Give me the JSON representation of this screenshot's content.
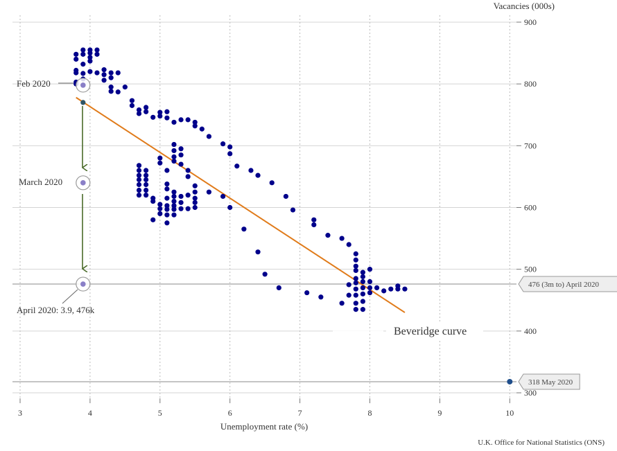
{
  "chart_data": {
    "type": "scatter",
    "title": "",
    "xlabel": "Unemployment rate (%)",
    "ylabel": "Vacancies (000s)",
    "xlim": [
      3,
      10
    ],
    "ylim": [
      300,
      900
    ],
    "xticks": [
      3,
      4,
      5,
      6,
      7,
      8,
      9,
      10
    ],
    "yticks": [
      300,
      400,
      500,
      600,
      700,
      800,
      900
    ],
    "source": "U.K. Office for National Statistics (ONS)",
    "curve_label": "Beveridge curve",
    "fit_line": {
      "x": [
        3.8,
        8.5
      ],
      "y": [
        778,
        430
      ]
    },
    "points": [
      [
        3.8,
        848
      ],
      [
        3.8,
        840
      ],
      [
        3.8,
        822
      ],
      [
        3.8,
        818
      ],
      [
        3.8,
        803
      ],
      [
        3.8,
        800
      ],
      [
        3.9,
        855
      ],
      [
        3.9,
        848
      ],
      [
        3.9,
        832
      ],
      [
        3.9,
        817
      ],
      [
        3.9,
        808
      ],
      [
        4.0,
        855
      ],
      [
        4.0,
        850
      ],
      [
        4.0,
        843
      ],
      [
        4.0,
        837
      ],
      [
        4.0,
        820
      ],
      [
        4.1,
        855
      ],
      [
        4.1,
        848
      ],
      [
        4.1,
        818
      ],
      [
        4.2,
        823
      ],
      [
        4.2,
        815
      ],
      [
        4.2,
        806
      ],
      [
        4.3,
        818
      ],
      [
        4.3,
        810
      ],
      [
        4.3,
        795
      ],
      [
        4.3,
        788
      ],
      [
        4.4,
        818
      ],
      [
        4.4,
        787
      ],
      [
        4.5,
        795
      ],
      [
        4.6,
        773
      ],
      [
        4.6,
        765
      ],
      [
        4.7,
        758
      ],
      [
        4.7,
        752
      ],
      [
        4.8,
        762
      ],
      [
        4.8,
        755
      ],
      [
        4.9,
        746
      ],
      [
        5.0,
        754
      ],
      [
        5.0,
        748
      ],
      [
        5.1,
        755
      ],
      [
        5.1,
        745
      ],
      [
        5.2,
        738
      ],
      [
        5.3,
        742
      ],
      [
        5.4,
        742
      ],
      [
        5.5,
        738
      ],
      [
        5.5,
        732
      ],
      [
        5.6,
        727
      ],
      [
        5.7,
        715
      ],
      [
        5.9,
        703
      ],
      [
        6.0,
        698
      ],
      [
        6.0,
        687
      ],
      [
        6.1,
        667
      ],
      [
        6.3,
        660
      ],
      [
        6.4,
        652
      ],
      [
        6.6,
        640
      ],
      [
        6.8,
        618
      ],
      [
        6.9,
        596
      ],
      [
        7.2,
        580
      ],
      [
        7.2,
        572
      ],
      [
        7.4,
        555
      ],
      [
        7.6,
        550
      ],
      [
        7.7,
        540
      ],
      [
        7.8,
        525
      ],
      [
        7.8,
        515
      ],
      [
        7.8,
        505
      ],
      [
        7.8,
        498
      ],
      [
        7.8,
        485
      ],
      [
        7.8,
        478
      ],
      [
        7.8,
        468
      ],
      [
        7.8,
        458
      ],
      [
        7.8,
        445
      ],
      [
        7.8,
        435
      ],
      [
        7.9,
        495
      ],
      [
        7.9,
        488
      ],
      [
        7.9,
        480
      ],
      [
        7.9,
        470
      ],
      [
        7.9,
        460
      ],
      [
        7.9,
        448
      ],
      [
        7.9,
        435
      ],
      [
        7.7,
        475
      ],
      [
        7.7,
        458
      ],
      [
        7.6,
        445
      ],
      [
        8.0,
        500
      ],
      [
        8.0,
        480
      ],
      [
        8.0,
        470
      ],
      [
        8.0,
        462
      ],
      [
        8.1,
        470
      ],
      [
        8.2,
        465
      ],
      [
        8.3,
        468
      ],
      [
        8.4,
        468
      ],
      [
        8.4,
        473
      ],
      [
        8.5,
        468
      ],
      [
        4.7,
        668
      ],
      [
        4.7,
        660
      ],
      [
        4.7,
        652
      ],
      [
        4.7,
        645
      ],
      [
        4.7,
        637
      ],
      [
        4.7,
        628
      ],
      [
        4.7,
        620
      ],
      [
        4.8,
        660
      ],
      [
        4.8,
        652
      ],
      [
        4.8,
        645
      ],
      [
        4.8,
        637
      ],
      [
        4.8,
        628
      ],
      [
        4.8,
        620
      ],
      [
        4.9,
        615
      ],
      [
        4.9,
        610
      ],
      [
        4.9,
        580
      ],
      [
        5.0,
        680
      ],
      [
        5.0,
        672
      ],
      [
        5.0,
        605
      ],
      [
        5.0,
        598
      ],
      [
        5.0,
        590
      ],
      [
        5.1,
        660
      ],
      [
        5.1,
        638
      ],
      [
        5.1,
        630
      ],
      [
        5.1,
        615
      ],
      [
        5.1,
        603
      ],
      [
        5.1,
        597
      ],
      [
        5.1,
        588
      ],
      [
        5.1,
        575
      ],
      [
        5.2,
        702
      ],
      [
        5.2,
        692
      ],
      [
        5.2,
        682
      ],
      [
        5.2,
        675
      ],
      [
        5.2,
        625
      ],
      [
        5.2,
        618
      ],
      [
        5.2,
        610
      ],
      [
        5.2,
        603
      ],
      [
        5.2,
        597
      ],
      [
        5.2,
        588
      ],
      [
        5.3,
        695
      ],
      [
        5.3,
        685
      ],
      [
        5.3,
        670
      ],
      [
        5.3,
        618
      ],
      [
        5.3,
        608
      ],
      [
        5.3,
        598
      ],
      [
        5.4,
        660
      ],
      [
        5.4,
        650
      ],
      [
        5.4,
        620
      ],
      [
        5.4,
        598
      ],
      [
        5.5,
        635
      ],
      [
        5.5,
        625
      ],
      [
        5.5,
        615
      ],
      [
        5.5,
        608
      ],
      [
        5.5,
        600
      ],
      [
        5.7,
        625
      ],
      [
        5.9,
        618
      ],
      [
        6.0,
        600
      ],
      [
        6.2,
        565
      ],
      [
        6.4,
        528
      ],
      [
        6.5,
        492
      ],
      [
        6.7,
        470
      ],
      [
        7.1,
        462
      ],
      [
        7.3,
        455
      ]
    ],
    "highlight_points": [
      {
        "label": "Feb 2020",
        "x": 3.9,
        "y": 798
      },
      {
        "label": "March 2020",
        "x": 3.9,
        "y": 640
      },
      {
        "label": "April 2020: 3.9, 476k",
        "x": 3.9,
        "y": 476
      }
    ],
    "start_dot": {
      "x": 3.9,
      "y": 770
    },
    "may_point": {
      "x": 10,
      "y": 318
    },
    "reference_lines": [
      {
        "y": 476,
        "label": "476 (3m to) April 2020"
      },
      {
        "y": 318,
        "label": "318 May 2020"
      }
    ]
  }
}
